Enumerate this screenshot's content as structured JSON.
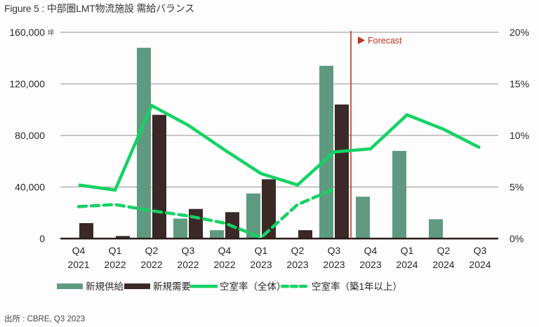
{
  "title": "Figure 5 : 中部圏LMT物流施設 需給バランス",
  "source": "出所 : CBRE, Q3 2023",
  "forecast_label": "Forecast",
  "colors": {
    "supply": "#5f9a80",
    "demand": "#3a2927",
    "vacancy": "#13d364",
    "forecast_line": "#c0341d",
    "grid": "#a9a5a5",
    "axis": "#2a1d1b"
  },
  "chart_data": {
    "type": "bar",
    "title": "中部圏LMT物流施設 需給バランス",
    "xlabel": "",
    "ylabel": "坪",
    "y2label": "%",
    "categories": [
      "Q4 2021",
      "Q1 2022",
      "Q2 2022",
      "Q3 2022",
      "Q4 2022",
      "Q1 2023",
      "Q2 2023",
      "Q3 2023",
      "Q4 2023",
      "Q1 2024",
      "Q2 2024",
      "Q3 2024"
    ],
    "category_lines": [
      [
        "Q4",
        "2021"
      ],
      [
        "Q1",
        "2022"
      ],
      [
        "Q2",
        "2022"
      ],
      [
        "Q3",
        "2022"
      ],
      [
        "Q4",
        "2022"
      ],
      [
        "Q1",
        "2023"
      ],
      [
        "Q2",
        "2023"
      ],
      [
        "Q3",
        "2023"
      ],
      [
        "Q4",
        "2023"
      ],
      [
        "Q1",
        "2024"
      ],
      [
        "Q2",
        "2024"
      ],
      [
        "Q3",
        "2024"
      ]
    ],
    "ylim": [
      0,
      160000
    ],
    "y_ticks": [
      "0",
      "40,000",
      "80,000",
      "120,000",
      "160,000"
    ],
    "y_unit": "坪",
    "y2lim": [
      0,
      20
    ],
    "y2_ticks": [
      "0%",
      "5%",
      "10%",
      "15%",
      "20%"
    ],
    "grid": true,
    "legend_position": "bottom",
    "forecast_start_after": "Q3 2023",
    "series": [
      {
        "name": "新規供給",
        "type": "bar",
        "axis": "left",
        "values": [
          0,
          0,
          148000,
          15500,
          6500,
          35000,
          0,
          134000,
          32500,
          68000,
          15000,
          0
        ]
      },
      {
        "name": "新規需要",
        "type": "bar",
        "axis": "left",
        "values": [
          12000,
          2000,
          96000,
          23000,
          20500,
          46000,
          6500,
          104000,
          null,
          null,
          null,
          null
        ]
      },
      {
        "name": "空室率（全体）",
        "type": "line",
        "axis": "right",
        "unit": "%",
        "values": [
          5.2,
          4.7,
          12.9,
          11.0,
          8.6,
          6.3,
          5.2,
          8.4,
          8.7,
          12.0,
          10.6,
          8.8
        ]
      },
      {
        "name": "空室率（築1年以上）",
        "type": "line",
        "style": "dashed",
        "axis": "right",
        "unit": "%",
        "values": [
          3.1,
          3.3,
          2.7,
          2.2,
          1.5,
          0.1,
          3.3,
          4.8,
          null,
          null,
          null,
          null
        ]
      }
    ]
  }
}
